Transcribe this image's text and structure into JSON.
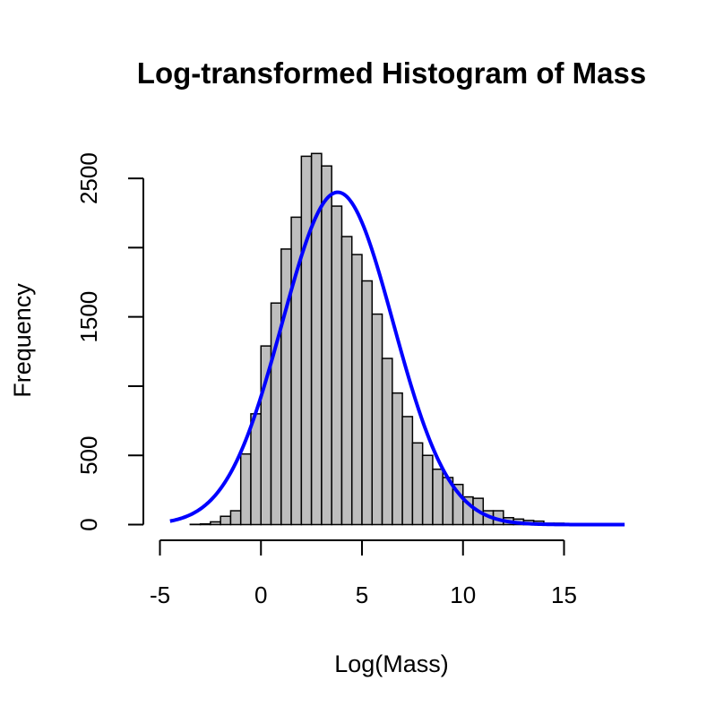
{
  "chart_data": {
    "type": "bar",
    "title": "Log-transformed Histogram of Mass",
    "xlabel": "Log(Mass)",
    "ylabel": "Frequency",
    "xlim": [
      -5,
      18
    ],
    "ylim": [
      0,
      2500
    ],
    "x_ticks": [
      -5,
      0,
      5,
      10,
      15
    ],
    "y_ticks": [
      0,
      500,
      1000,
      1500,
      2000,
      2500
    ],
    "y_tick_labels": [
      "0",
      "500",
      "",
      "1500",
      "",
      "2500"
    ],
    "bin_width": 0.5,
    "bins": [
      {
        "x0": -4.5,
        "x1": -4.0,
        "count": 0
      },
      {
        "x0": -4.0,
        "x1": -3.5,
        "count": 0
      },
      {
        "x0": -3.5,
        "x1": -3.0,
        "count": 2
      },
      {
        "x0": -3.0,
        "x1": -2.5,
        "count": 5
      },
      {
        "x0": -2.5,
        "x1": -2.0,
        "count": 20
      },
      {
        "x0": -2.0,
        "x1": -1.5,
        "count": 60
      },
      {
        "x0": -1.5,
        "x1": -1.0,
        "count": 100
      },
      {
        "x0": -1.0,
        "x1": -0.5,
        "count": 510
      },
      {
        "x0": -0.5,
        "x1": 0.0,
        "count": 800
      },
      {
        "x0": 0.0,
        "x1": 0.5,
        "count": 1290
      },
      {
        "x0": 0.5,
        "x1": 1.0,
        "count": 1600
      },
      {
        "x0": 1.0,
        "x1": 1.5,
        "count": 1990
      },
      {
        "x0": 1.5,
        "x1": 2.0,
        "count": 2220
      },
      {
        "x0": 2.0,
        "x1": 2.5,
        "count": 2660
      },
      {
        "x0": 2.5,
        "x1": 3.0,
        "count": 2680
      },
      {
        "x0": 3.0,
        "x1": 3.5,
        "count": 2590
      },
      {
        "x0": 3.5,
        "x1": 4.0,
        "count": 2300
      },
      {
        "x0": 4.0,
        "x1": 4.5,
        "count": 2080
      },
      {
        "x0": 4.5,
        "x1": 5.0,
        "count": 1950
      },
      {
        "x0": 5.0,
        "x1": 5.5,
        "count": 1760
      },
      {
        "x0": 5.5,
        "x1": 6.0,
        "count": 1520
      },
      {
        "x0": 6.0,
        "x1": 6.5,
        "count": 1200
      },
      {
        "x0": 6.5,
        "x1": 7.0,
        "count": 950
      },
      {
        "x0": 7.0,
        "x1": 7.5,
        "count": 780
      },
      {
        "x0": 7.5,
        "x1": 8.0,
        "count": 590
      },
      {
        "x0": 8.0,
        "x1": 8.5,
        "count": 500
      },
      {
        "x0": 8.5,
        "x1": 9.0,
        "count": 400
      },
      {
        "x0": 9.0,
        "x1": 9.5,
        "count": 340
      },
      {
        "x0": 9.5,
        "x1": 10.0,
        "count": 290
      },
      {
        "x0": 10.0,
        "x1": 10.5,
        "count": 200
      },
      {
        "x0": 10.5,
        "x1": 11.0,
        "count": 190
      },
      {
        "x0": 11.0,
        "x1": 11.5,
        "count": 100
      },
      {
        "x0": 11.5,
        "x1": 12.0,
        "count": 100
      },
      {
        "x0": 12.0,
        "x1": 12.5,
        "count": 50
      },
      {
        "x0": 12.5,
        "x1": 13.0,
        "count": 40
      },
      {
        "x0": 13.0,
        "x1": 13.5,
        "count": 30
      },
      {
        "x0": 13.5,
        "x1": 14.0,
        "count": 25
      },
      {
        "x0": 14.0,
        "x1": 14.5,
        "count": 10
      },
      {
        "x0": 14.5,
        "x1": 15.0,
        "count": 10
      },
      {
        "x0": 15.0,
        "x1": 15.5,
        "count": 5
      },
      {
        "x0": 15.5,
        "x1": 16.0,
        "count": 3
      }
    ],
    "curve": {
      "type": "normal",
      "mean": 3.8,
      "sd": 2.75,
      "peak": 2400,
      "x_range": [
        -4.5,
        18
      ],
      "color": "#0000ff"
    },
    "bar_fill": "#bebebe",
    "grid": false,
    "legend": "none"
  }
}
